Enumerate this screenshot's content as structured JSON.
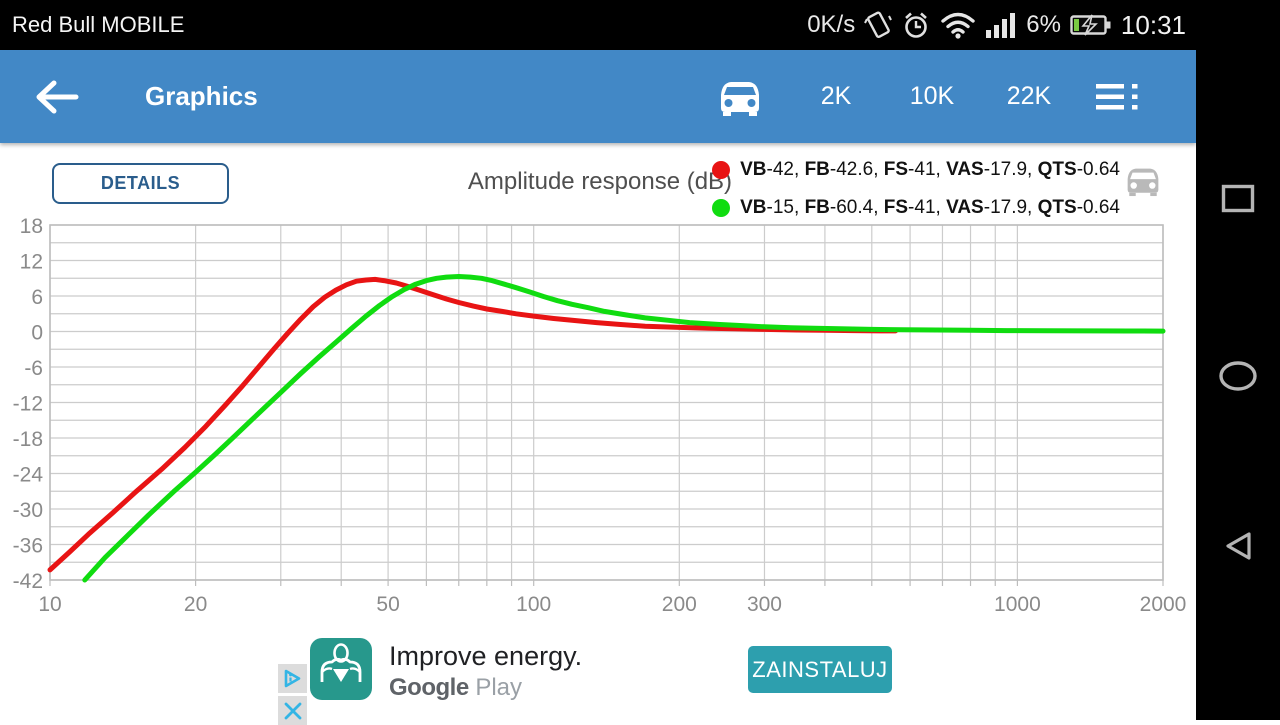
{
  "status_bar": {
    "carrier": "Red Bull MOBILE",
    "net_speed": "0K/s",
    "battery_percent": "6%",
    "time": "10:31",
    "icons": [
      "vibrate-icon",
      "alarm-icon",
      "wifi-icon",
      "signal-strength-icon",
      "battery-charging-icon"
    ]
  },
  "app_bar": {
    "title": "Graphics",
    "accent_color": "#4288c6",
    "buttons": {
      "f2k": "2K",
      "f10k": "10K",
      "f22k": "22K"
    },
    "icons": [
      "back-arrow-icon",
      "car-icon",
      "menu-list-icon"
    ]
  },
  "controls": {
    "details_label": "DETAILS"
  },
  "chart_data": {
    "type": "line",
    "title": "Amplitude response (dB)",
    "x_scale": "log",
    "xlim": [
      10,
      2000
    ],
    "ylim": [
      -42,
      18
    ],
    "y_ticks": [
      18,
      12,
      6,
      0,
      -6,
      -12,
      -18,
      -24,
      -30,
      -36,
      -42
    ],
    "x_ticks": [
      10,
      20,
      50,
      100,
      200,
      300,
      1000,
      2000
    ],
    "x_gridlines": [
      10,
      20,
      30,
      40,
      50,
      60,
      70,
      80,
      90,
      100,
      200,
      300,
      400,
      500,
      600,
      700,
      800,
      900,
      1000,
      2000
    ],
    "y_gridline_step": 3,
    "grid_color": "#cccccc",
    "axis_label_color": "#8a8a8a",
    "legend_position": "top-right",
    "series": [
      {
        "name": "VB-42, FB-42.6, FS-41, VAS-17.9, QTS-0.64",
        "color": "#e81414",
        "points": [
          [
            10,
            -40.3
          ],
          [
            11,
            -37.2
          ],
          [
            12,
            -34.3
          ],
          [
            13.5,
            -30.6
          ],
          [
            15,
            -27.2
          ],
          [
            17,
            -23.3
          ],
          [
            19,
            -19.6
          ],
          [
            21,
            -16
          ],
          [
            23,
            -12.5
          ],
          [
            25,
            -9.2
          ],
          [
            27,
            -6
          ],
          [
            29,
            -3
          ],
          [
            31,
            -0.3
          ],
          [
            33,
            2.1
          ],
          [
            35,
            4.2
          ],
          [
            37,
            5.8
          ],
          [
            39,
            7
          ],
          [
            41,
            7.9
          ],
          [
            43,
            8.5
          ],
          [
            45,
            8.7
          ],
          [
            47,
            8.8
          ],
          [
            49,
            8.6
          ],
          [
            52,
            8.2
          ],
          [
            55,
            7.6
          ],
          [
            58,
            7
          ],
          [
            62,
            6.2
          ],
          [
            66,
            5.5
          ],
          [
            70,
            4.9
          ],
          [
            75,
            4.3
          ],
          [
            80,
            3.8
          ],
          [
            86,
            3.4
          ],
          [
            92,
            3
          ],
          [
            100,
            2.6
          ],
          [
            110,
            2.2
          ],
          [
            120,
            1.9
          ],
          [
            135,
            1.5
          ],
          [
            150,
            1.2
          ],
          [
            170,
            0.9
          ],
          [
            200,
            0.7
          ],
          [
            230,
            0.55
          ],
          [
            260,
            0.45
          ],
          [
            300,
            0.35
          ],
          [
            350,
            0.25
          ],
          [
            400,
            0.2
          ],
          [
            460,
            0.15
          ],
          [
            520,
            0.1
          ],
          [
            560,
            0.1
          ]
        ]
      },
      {
        "name": "VB-15, FB-60.4, FS-41, VAS-17.9, QTS-0.64",
        "color": "#10dc10",
        "points": [
          [
            11.8,
            -42
          ],
          [
            13,
            -38.2
          ],
          [
            14.5,
            -34.4
          ],
          [
            16,
            -31
          ],
          [
            18,
            -27.1
          ],
          [
            20,
            -23.8
          ],
          [
            22,
            -20.7
          ],
          [
            24,
            -17.8
          ],
          [
            26,
            -15.1
          ],
          [
            28,
            -12.6
          ],
          [
            30,
            -10.3
          ],
          [
            33,
            -7.1
          ],
          [
            36,
            -4.3
          ],
          [
            39,
            -1.8
          ],
          [
            42,
            0.5
          ],
          [
            45,
            2.6
          ],
          [
            48,
            4.4
          ],
          [
            51,
            5.9
          ],
          [
            54,
            7.1
          ],
          [
            57,
            8
          ],
          [
            60,
            8.6
          ],
          [
            63,
            9
          ],
          [
            66,
            9.2
          ],
          [
            70,
            9.3
          ],
          [
            74,
            9.2
          ],
          [
            78,
            9
          ],
          [
            82,
            8.6
          ],
          [
            87,
            8
          ],
          [
            92,
            7.4
          ],
          [
            98,
            6.7
          ],
          [
            105,
            5.9
          ],
          [
            112,
            5.2
          ],
          [
            120,
            4.6
          ],
          [
            130,
            4
          ],
          [
            140,
            3.4
          ],
          [
            155,
            2.8
          ],
          [
            170,
            2.3
          ],
          [
            190,
            1.9
          ],
          [
            210,
            1.5
          ],
          [
            240,
            1.2
          ],
          [
            270,
            1
          ],
          [
            300,
            0.8
          ],
          [
            340,
            0.65
          ],
          [
            380,
            0.55
          ],
          [
            430,
            0.45
          ],
          [
            500,
            0.35
          ],
          [
            580,
            0.3
          ],
          [
            680,
            0.25
          ],
          [
            800,
            0.2
          ],
          [
            950,
            0.15
          ],
          [
            1150,
            0.12
          ],
          [
            1400,
            0.1
          ],
          [
            1700,
            0.08
          ],
          [
            2000,
            0.07
          ]
        ]
      }
    ]
  },
  "nav_bar": {
    "icons": [
      "recents-square-icon",
      "home-circle-icon",
      "back-triangle-icon"
    ]
  },
  "ad": {
    "headline": "Improve energy.",
    "store_brand": "Google",
    "store_product": "Play",
    "install_label": "ZAINSTALUJ",
    "accent_color": "#2d9fae",
    "app_icon_color": "#27988c",
    "icons": [
      "adchoices-icon",
      "ad-close-icon",
      "advertised-app-icon"
    ]
  }
}
